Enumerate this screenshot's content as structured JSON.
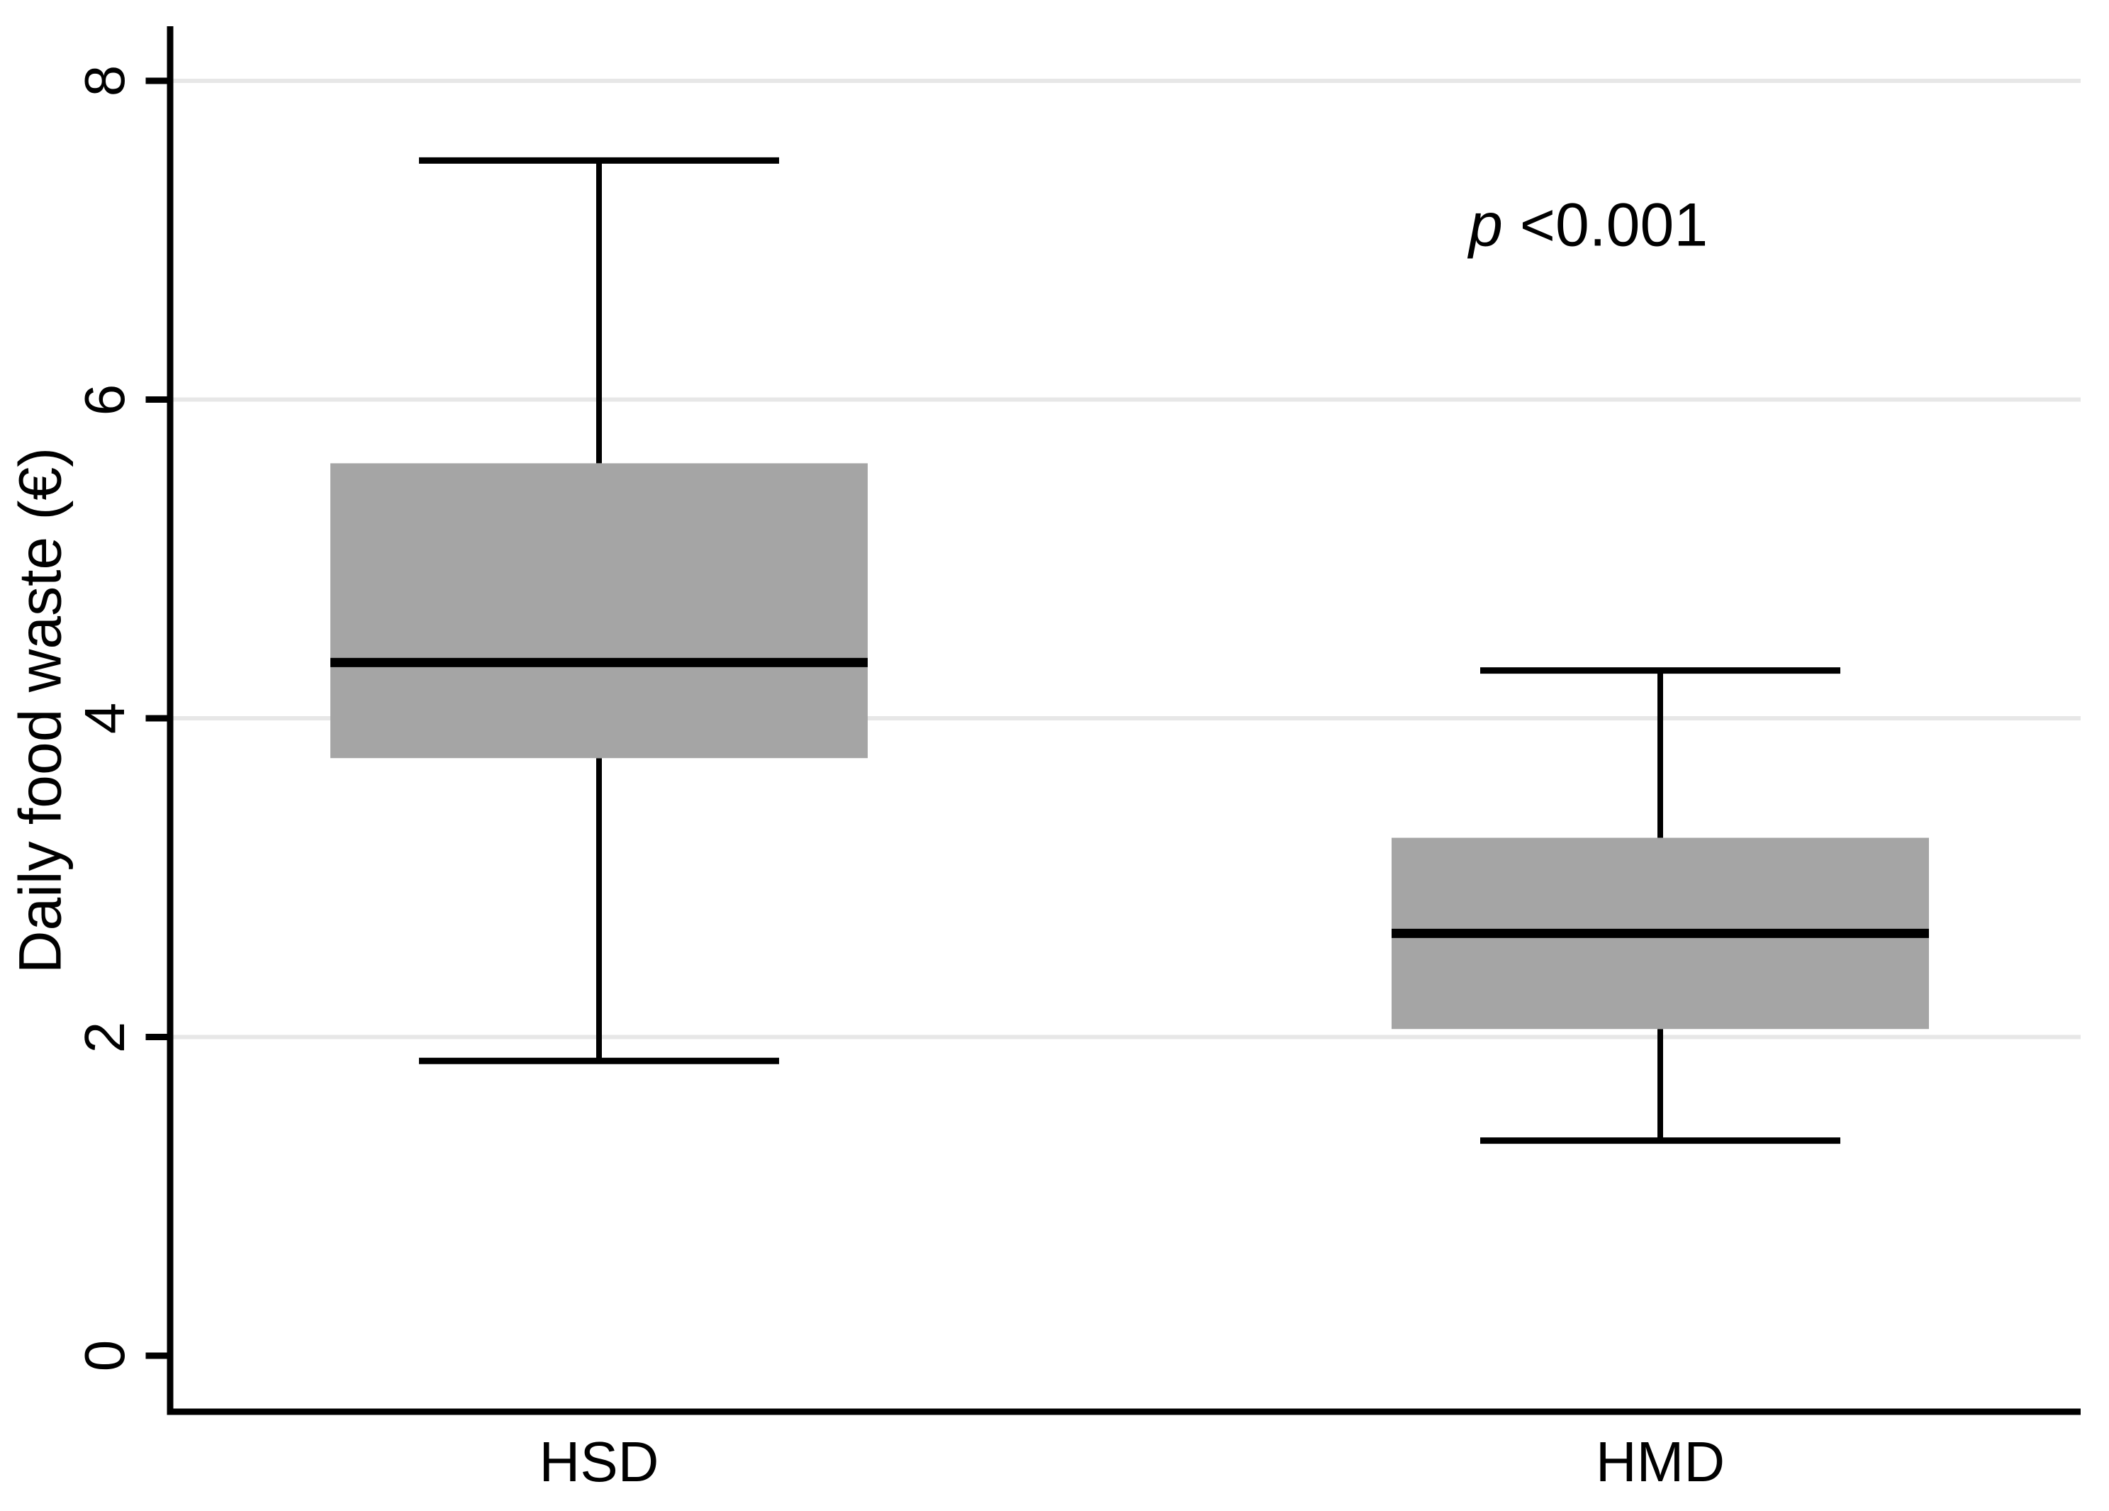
{
  "figure": {
    "background": "#ffffff"
  },
  "chart_data": {
    "type": "boxplot",
    "title": "",
    "xlabel": "",
    "ylabel": "Daily food waste (€)",
    "categories": [
      "HSD",
      "HMD"
    ],
    "yticks": [
      0,
      2,
      4,
      6,
      8
    ],
    "ylim": [
      0,
      8.7
    ],
    "grid": "horizontal gridlines at y=2,4,6,8",
    "legend": "none",
    "annotation": {
      "italic": "p",
      "text": " <0.001"
    },
    "series": [
      {
        "name": "HSD",
        "whisker_low": 1.85,
        "q1": 3.75,
        "median": 4.35,
        "q3": 5.6,
        "whisker_high": 7.5
      },
      {
        "name": "HMD",
        "whisker_low": 1.35,
        "q1": 2.05,
        "median": 2.65,
        "q3": 3.25,
        "whisker_high": 4.3
      }
    ],
    "colors": {
      "box_fill": "#a5a5a5",
      "median": "#000000",
      "whisker": "#000000",
      "grid": "#e7e7e7",
      "axis": "#000000",
      "text": "#000000"
    }
  }
}
